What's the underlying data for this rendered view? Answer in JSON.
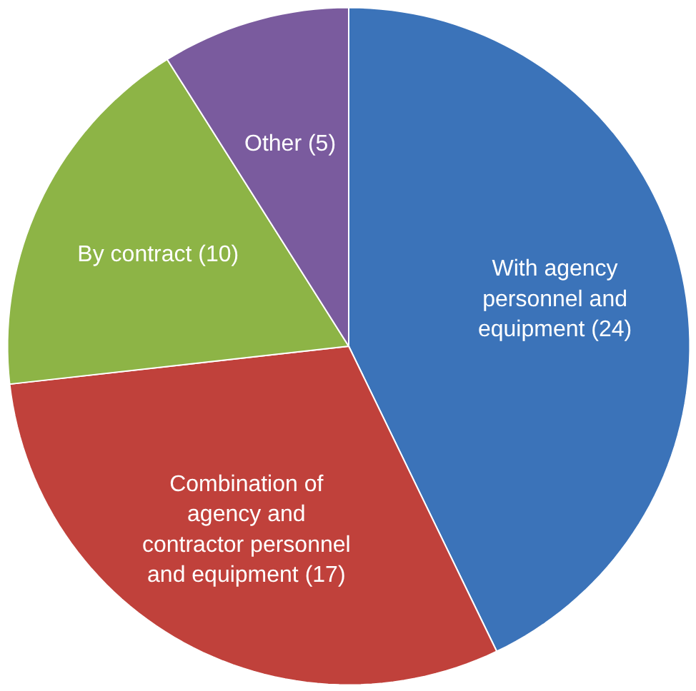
{
  "chart_data": {
    "type": "pie",
    "categories": [
      "With agency personnel and equipment",
      "Combination of agency and contractor personnel and equipment",
      "By contract",
      "Other"
    ],
    "values": [
      24,
      17,
      10,
      5
    ],
    "value_labels": [
      "(24)",
      "(17)",
      "(10)",
      "(5)"
    ],
    "colors": [
      "#3b73b9",
      "#c0413b",
      "#8db446",
      "#7a5b9e"
    ]
  }
}
